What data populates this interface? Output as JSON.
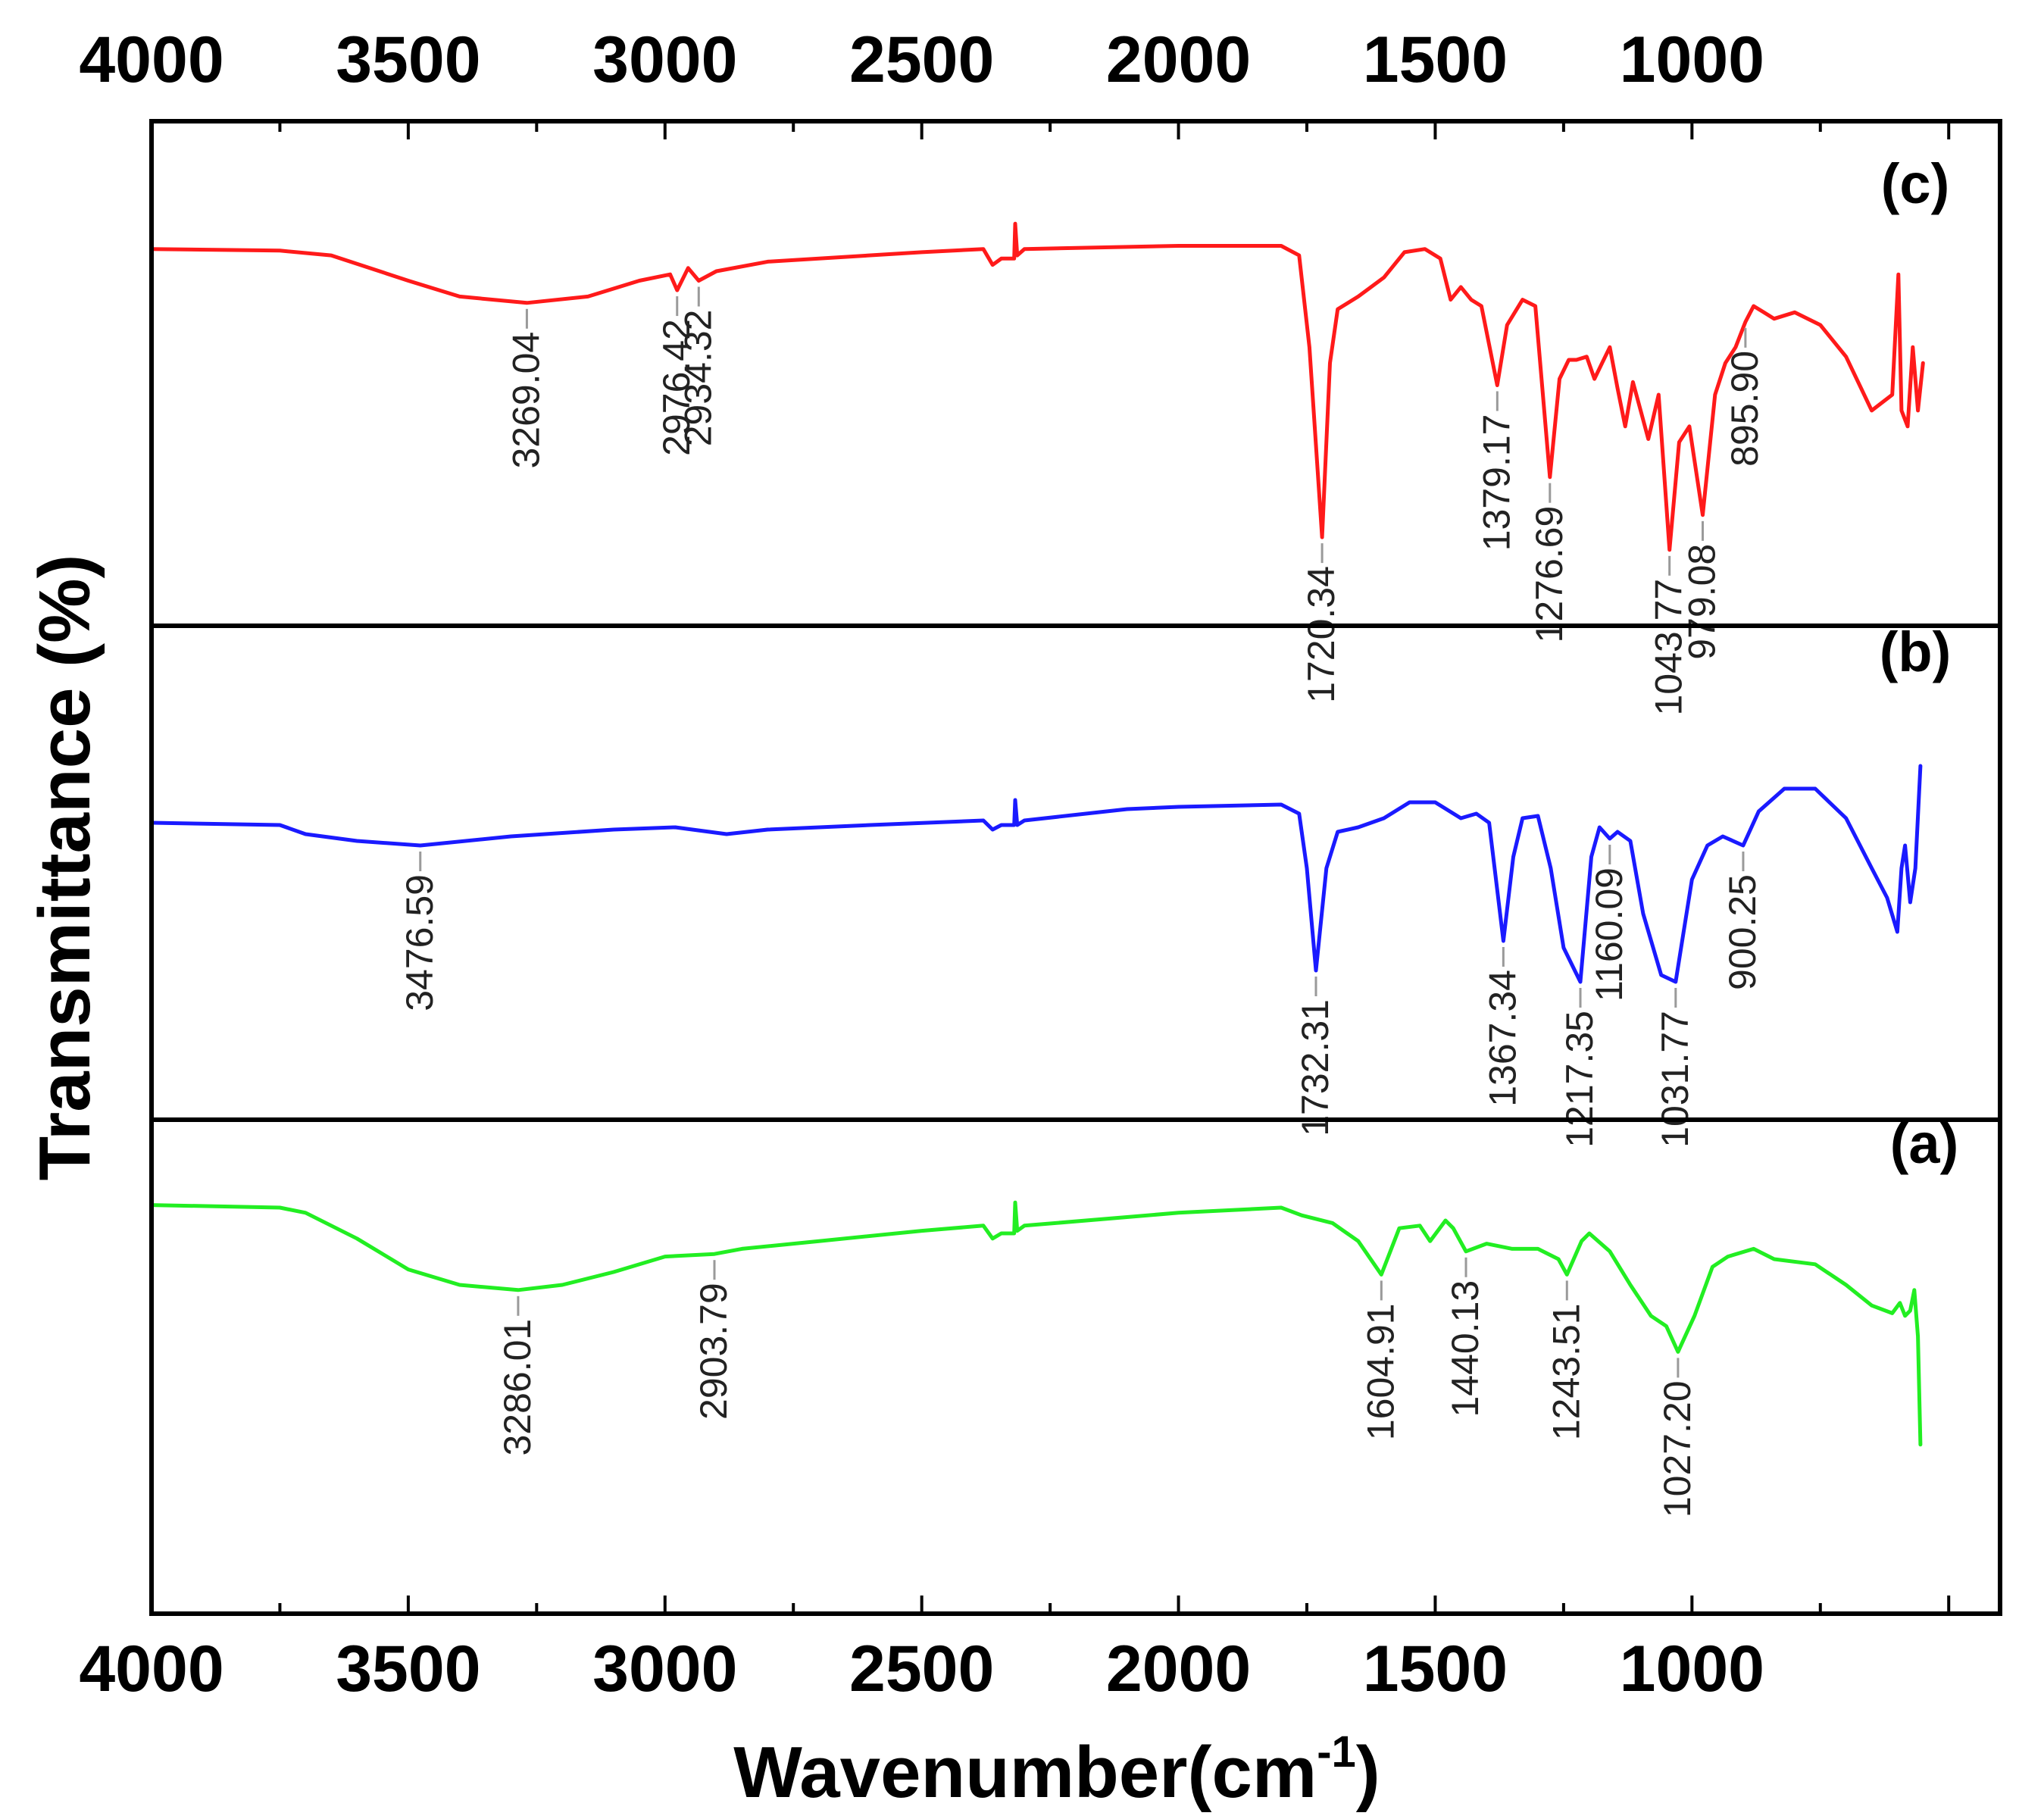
{
  "chart_data": {
    "type": "line",
    "xlabel": "Wavenumber(cm",
    "xlabel_sup": "-1",
    "xlabel_close": ")",
    "ylabel": "Transmittance (%)",
    "xlim": [
      4000,
      400
    ],
    "x_ticks": [
      4000,
      3500,
      3000,
      2500,
      2000,
      1500,
      1000
    ],
    "series": [
      {
        "name": "(c)",
        "color": "#ff1a1a",
        "points": [
          [
            4000,
            0.04
          ],
          [
            3750,
            0.045
          ],
          [
            3650,
            0.06
          ],
          [
            3500,
            0.14
          ],
          [
            3400,
            0.19
          ],
          [
            3269.04,
            0.21
          ],
          [
            3150,
            0.19
          ],
          [
            3050,
            0.14
          ],
          [
            2990,
            0.12
          ],
          [
            2976.42,
            0.17
          ],
          [
            2955,
            0.1
          ],
          [
            2934.32,
            0.14
          ],
          [
            2900,
            0.11
          ],
          [
            2800,
            0.08
          ],
          [
            2500,
            0.05
          ],
          [
            2380,
            0.04
          ],
          [
            2362,
            0.09
          ],
          [
            2345,
            0.07
          ],
          [
            2320,
            0.07
          ],
          [
            2318,
            -0.04
          ],
          [
            2314,
            0.06
          ],
          [
            2300,
            0.04
          ],
          [
            2000,
            0.03
          ],
          [
            1800,
            0.03
          ],
          [
            1765,
            0.06
          ],
          [
            1745,
            0.35
          ],
          [
            1720.34,
            0.95
          ],
          [
            1705,
            0.4
          ],
          [
            1690,
            0.23
          ],
          [
            1650,
            0.19
          ],
          [
            1600,
            0.13
          ],
          [
            1560,
            0.05
          ],
          [
            1520,
            0.04
          ],
          [
            1490,
            0.07
          ],
          [
            1470,
            0.2
          ],
          [
            1450,
            0.16
          ],
          [
            1430,
            0.2
          ],
          [
            1410,
            0.22
          ],
          [
            1379.17,
            0.47
          ],
          [
            1360,
            0.28
          ],
          [
            1330,
            0.2
          ],
          [
            1305,
            0.22
          ],
          [
            1276.69,
            0.76
          ],
          [
            1258,
            0.45
          ],
          [
            1240,
            0.39
          ],
          [
            1225,
            0.39
          ],
          [
            1205,
            0.38
          ],
          [
            1190,
            0.45
          ],
          [
            1175,
            0.4
          ],
          [
            1160,
            0.35
          ],
          [
            1145,
            0.48
          ],
          [
            1130,
            0.6
          ],
          [
            1115,
            0.46
          ],
          [
            1100,
            0.55
          ],
          [
            1085,
            0.64
          ],
          [
            1065,
            0.5
          ],
          [
            1043.77,
            0.99
          ],
          [
            1025,
            0.65
          ],
          [
            1005,
            0.6
          ],
          [
            979.08,
            0.88
          ],
          [
            955,
            0.5
          ],
          [
            935,
            0.4
          ],
          [
            915,
            0.35
          ],
          [
            895.9,
            0.27
          ],
          [
            880,
            0.22
          ],
          [
            860,
            0.24
          ],
          [
            840,
            0.26
          ],
          [
            800,
            0.24
          ],
          [
            750,
            0.28
          ],
          [
            700,
            0.38
          ],
          [
            650,
            0.55
          ],
          [
            610,
            0.5
          ],
          [
            598,
            0.12
          ],
          [
            592,
            0.55
          ],
          [
            580,
            0.6
          ],
          [
            570,
            0.35
          ],
          [
            560,
            0.55
          ],
          [
            550,
            0.4
          ]
        ]
      },
      {
        "name": "(b)",
        "color": "#1a1aff",
        "points": [
          [
            4000,
            0.3
          ],
          [
            3750,
            0.31
          ],
          [
            3700,
            0.35
          ],
          [
            3600,
            0.38
          ],
          [
            3476.59,
            0.4
          ],
          [
            3300,
            0.36
          ],
          [
            3100,
            0.33
          ],
          [
            2980,
            0.32
          ],
          [
            2880,
            0.35
          ],
          [
            2800,
            0.33
          ],
          [
            2600,
            0.31
          ],
          [
            2380,
            0.29
          ],
          [
            2362,
            0.33
          ],
          [
            2345,
            0.31
          ],
          [
            2320,
            0.31
          ],
          [
            2318,
            0.2
          ],
          [
            2314,
            0.31
          ],
          [
            2300,
            0.29
          ],
          [
            2100,
            0.24
          ],
          [
            2000,
            0.23
          ],
          [
            1800,
            0.22
          ],
          [
            1765,
            0.26
          ],
          [
            1750,
            0.5
          ],
          [
            1732.31,
            0.95
          ],
          [
            1712,
            0.5
          ],
          [
            1690,
            0.34
          ],
          [
            1650,
            0.32
          ],
          [
            1600,
            0.28
          ],
          [
            1550,
            0.21
          ],
          [
            1500,
            0.21
          ],
          [
            1450,
            0.28
          ],
          [
            1420,
            0.26
          ],
          [
            1395,
            0.3
          ],
          [
            1367.34,
            0.82
          ],
          [
            1348,
            0.45
          ],
          [
            1330,
            0.28
          ],
          [
            1300,
            0.27
          ],
          [
            1275,
            0.5
          ],
          [
            1250,
            0.85
          ],
          [
            1217.35,
            1.0
          ],
          [
            1196,
            0.45
          ],
          [
            1180,
            0.32
          ],
          [
            1160.09,
            0.37
          ],
          [
            1145,
            0.34
          ],
          [
            1120,
            0.38
          ],
          [
            1095,
            0.7
          ],
          [
            1060,
            0.97
          ],
          [
            1031.77,
            1.0
          ],
          [
            1000,
            0.55
          ],
          [
            970,
            0.4
          ],
          [
            940,
            0.36
          ],
          [
            900.25,
            0.4
          ],
          [
            870,
            0.25
          ],
          [
            820,
            0.15
          ],
          [
            760,
            0.15
          ],
          [
            700,
            0.28
          ],
          [
            650,
            0.5
          ],
          [
            620,
            0.63
          ],
          [
            600,
            0.78
          ],
          [
            592,
            0.5
          ],
          [
            585,
            0.4
          ],
          [
            575,
            0.65
          ],
          [
            565,
            0.5
          ],
          [
            555,
            0.05
          ]
        ]
      },
      {
        "name": "(a)",
        "color": "#22ee22",
        "points": [
          [
            4000,
            0.09
          ],
          [
            3750,
            0.1
          ],
          [
            3700,
            0.12
          ],
          [
            3600,
            0.22
          ],
          [
            3500,
            0.34
          ],
          [
            3400,
            0.4
          ],
          [
            3286.01,
            0.42
          ],
          [
            3200,
            0.4
          ],
          [
            3100,
            0.35
          ],
          [
            3000,
            0.29
          ],
          [
            2903.79,
            0.28
          ],
          [
            2850,
            0.26
          ],
          [
            2700,
            0.23
          ],
          [
            2500,
            0.19
          ],
          [
            2380,
            0.17
          ],
          [
            2362,
            0.22
          ],
          [
            2345,
            0.2
          ],
          [
            2320,
            0.2
          ],
          [
            2318,
            0.08
          ],
          [
            2314,
            0.19
          ],
          [
            2300,
            0.17
          ],
          [
            2000,
            0.12
          ],
          [
            1800,
            0.1
          ],
          [
            1760,
            0.13
          ],
          [
            1700,
            0.16
          ],
          [
            1650,
            0.23
          ],
          [
            1604.91,
            0.36
          ],
          [
            1570,
            0.18
          ],
          [
            1530,
            0.17
          ],
          [
            1510,
            0.23
          ],
          [
            1480,
            0.15
          ],
          [
            1465,
            0.18
          ],
          [
            1440.13,
            0.27
          ],
          [
            1400,
            0.24
          ],
          [
            1350,
            0.26
          ],
          [
            1300,
            0.26
          ],
          [
            1260,
            0.3
          ],
          [
            1243.51,
            0.36
          ],
          [
            1215,
            0.23
          ],
          [
            1200,
            0.2
          ],
          [
            1160,
            0.27
          ],
          [
            1120,
            0.4
          ],
          [
            1080,
            0.52
          ],
          [
            1050,
            0.56
          ],
          [
            1027.2,
            0.66
          ],
          [
            995,
            0.52
          ],
          [
            960,
            0.33
          ],
          [
            930,
            0.29
          ],
          [
            880,
            0.26
          ],
          [
            840,
            0.3
          ],
          [
            760,
            0.32
          ],
          [
            700,
            0.4
          ],
          [
            650,
            0.48
          ],
          [
            610,
            0.51
          ],
          [
            595,
            0.47
          ],
          [
            585,
            0.52
          ],
          [
            575,
            0.5
          ],
          [
            567,
            0.42
          ],
          [
            560,
            0.6
          ],
          [
            555,
            1.02
          ]
        ]
      }
    ],
    "annotations": [
      {
        "series": "(c)",
        "label": "3269.04",
        "x": 3269.04
      },
      {
        "series": "(c)",
        "label": "2976.42",
        "x": 2976.42
      },
      {
        "series": "(c)",
        "label": "2934.32",
        "x": 2934.32
      },
      {
        "series": "(c)",
        "label": "1720.34",
        "x": 1720.34
      },
      {
        "series": "(c)",
        "label": "1379.17",
        "x": 1379.17
      },
      {
        "series": "(c)",
        "label": "1276.69",
        "x": 1276.69
      },
      {
        "series": "(c)",
        "label": "1043.77",
        "x": 1043.77
      },
      {
        "series": "(c)",
        "label": "979.08",
        "x": 979.08
      },
      {
        "series": "(c)",
        "label": "895.90",
        "x": 895.9
      },
      {
        "series": "(b)",
        "label": "3476.59",
        "x": 3476.59
      },
      {
        "series": "(b)",
        "label": "1732.31",
        "x": 1732.31
      },
      {
        "series": "(b)",
        "label": "1367.34",
        "x": 1367.34
      },
      {
        "series": "(b)",
        "label": "1217.35",
        "x": 1217.35
      },
      {
        "series": "(b)",
        "label": "1160.09",
        "x": 1160.09
      },
      {
        "series": "(b)",
        "label": "1031.77",
        "x": 1031.77
      },
      {
        "series": "(b)",
        "label": "900.25",
        "x": 900.25
      },
      {
        "series": "(a)",
        "label": "3286.01",
        "x": 3286.01
      },
      {
        "series": "(a)",
        "label": "2903.79",
        "x": 2903.79
      },
      {
        "series": "(a)",
        "label": "1604.91",
        "x": 1604.91
      },
      {
        "series": "(a)",
        "label": "1440.13",
        "x": 1440.13
      },
      {
        "series": "(a)",
        "label": "1243.51",
        "x": 1243.51
      },
      {
        "series": "(a)",
        "label": "1027.20",
        "x": 1027.2
      }
    ]
  }
}
